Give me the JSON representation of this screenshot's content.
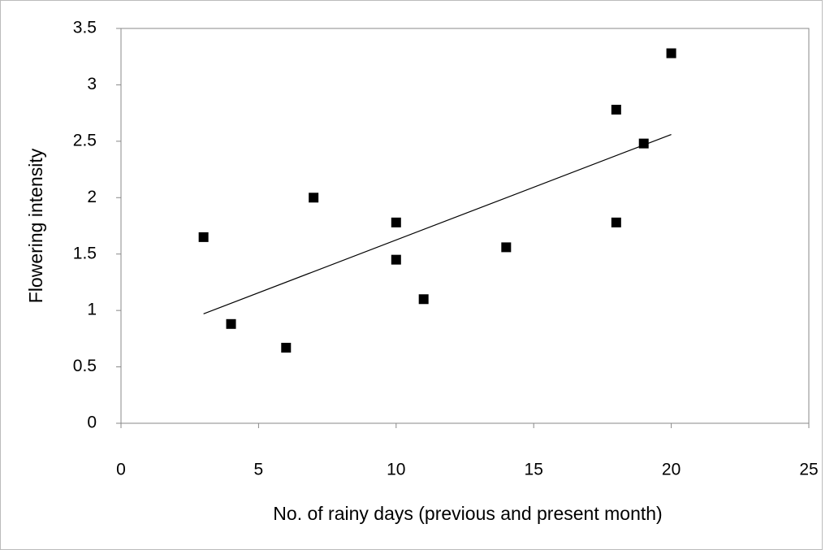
{
  "chart_data": {
    "type": "scatter",
    "x_label": "No. of rainy days (previous and present month)",
    "y_label": "Flowering intensity",
    "series": [
      {
        "color": "#000000",
        "x": [
          3,
          4,
          6,
          7,
          10,
          10,
          11,
          14,
          18,
          18,
          19,
          20
        ],
        "values": [
          1.65,
          0.88,
          0.67,
          2.0,
          1.78,
          1.45,
          1.1,
          1.56,
          2.78,
          1.78,
          2.48,
          3.28
        ]
      }
    ],
    "trendline": {
      "color": "#000000",
      "x": [
        3,
        20
      ],
      "values": [
        0.97,
        2.56
      ]
    },
    "xlim": [
      0,
      25
    ],
    "xticks": [
      0,
      5,
      10,
      15,
      20,
      25
    ],
    "ylim": [
      0,
      3.5
    ],
    "yticks": [
      0,
      0.5,
      1,
      1.5,
      2,
      2.5,
      3,
      3.5
    ],
    "grid": false
  }
}
